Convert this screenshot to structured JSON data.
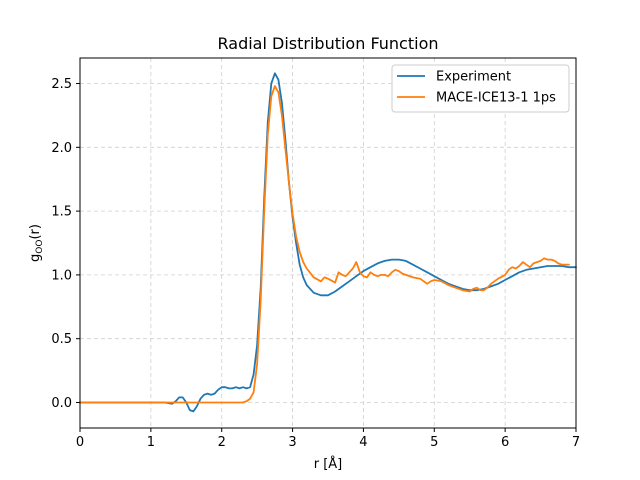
{
  "chart_data": {
    "type": "line",
    "title": "Radial Distribution Function",
    "xlabel": "r [Å]",
    "ylabel": "g_OO(r)",
    "xlim": [
      0,
      7
    ],
    "ylim": [
      -0.2,
      2.7
    ],
    "xticks": [
      0,
      1,
      2,
      3,
      4,
      5,
      6,
      7
    ],
    "yticks": [
      0.0,
      0.5,
      1.0,
      1.5,
      2.0,
      2.5
    ],
    "xtick_labels": [
      "0",
      "1",
      "2",
      "3",
      "4",
      "5",
      "6",
      "7"
    ],
    "ytick_labels": [
      "0.0",
      "0.5",
      "1.0",
      "1.5",
      "2.0",
      "2.5"
    ],
    "grid": true,
    "legend_position": "top-right",
    "series": [
      {
        "name": "Experiment",
        "color": "#1f77b4",
        "x": [
          0,
          1.0,
          1.2,
          1.3,
          1.35,
          1.4,
          1.45,
          1.5,
          1.55,
          1.6,
          1.65,
          1.7,
          1.75,
          1.8,
          1.85,
          1.9,
          1.95,
          2.0,
          2.05,
          2.1,
          2.15,
          2.2,
          2.25,
          2.3,
          2.35,
          2.4,
          2.45,
          2.5,
          2.55,
          2.6,
          2.65,
          2.7,
          2.75,
          2.8,
          2.85,
          2.9,
          2.95,
          3.0,
          3.05,
          3.1,
          3.15,
          3.2,
          3.3,
          3.4,
          3.5,
          3.6,
          3.7,
          3.8,
          3.9,
          4.0,
          4.1,
          4.2,
          4.3,
          4.4,
          4.5,
          4.6,
          4.7,
          4.8,
          4.9,
          5.0,
          5.1,
          5.2,
          5.3,
          5.4,
          5.5,
          5.6,
          5.7,
          5.8,
          5.9,
          6.0,
          6.1,
          6.2,
          6.3,
          6.4,
          6.5,
          6.6,
          6.7,
          6.8,
          6.9,
          7.0
        ],
        "y": [
          0,
          0,
          0,
          -0.01,
          0.01,
          0.04,
          0.04,
          0.0,
          -0.06,
          -0.07,
          -0.03,
          0.03,
          0.06,
          0.07,
          0.06,
          0.07,
          0.1,
          0.12,
          0.12,
          0.11,
          0.11,
          0.12,
          0.11,
          0.12,
          0.11,
          0.12,
          0.22,
          0.45,
          0.9,
          1.6,
          2.2,
          2.5,
          2.58,
          2.53,
          2.35,
          2.05,
          1.72,
          1.45,
          1.25,
          1.08,
          0.98,
          0.92,
          0.86,
          0.84,
          0.84,
          0.87,
          0.91,
          0.95,
          0.99,
          1.03,
          1.06,
          1.09,
          1.11,
          1.12,
          1.12,
          1.11,
          1.08,
          1.05,
          1.02,
          0.99,
          0.96,
          0.93,
          0.91,
          0.89,
          0.88,
          0.88,
          0.89,
          0.91,
          0.93,
          0.96,
          0.99,
          1.02,
          1.04,
          1.05,
          1.06,
          1.07,
          1.07,
          1.07,
          1.06,
          1.06
        ]
      },
      {
        "name": "MACE-ICE13-1 1ps",
        "color": "#ff7f0e",
        "x": [
          0,
          2.3,
          2.35,
          2.4,
          2.45,
          2.5,
          2.55,
          2.6,
          2.65,
          2.7,
          2.75,
          2.8,
          2.85,
          2.9,
          2.95,
          3.0,
          3.05,
          3.1,
          3.15,
          3.2,
          3.3,
          3.4,
          3.45,
          3.5,
          3.6,
          3.65,
          3.7,
          3.75,
          3.8,
          3.85,
          3.9,
          3.95,
          4.0,
          4.05,
          4.1,
          4.15,
          4.2,
          4.25,
          4.3,
          4.35,
          4.4,
          4.45,
          4.5,
          4.55,
          4.6,
          4.7,
          4.8,
          4.9,
          4.95,
          5.0,
          5.1,
          5.2,
          5.3,
          5.4,
          5.5,
          5.55,
          5.6,
          5.65,
          5.7,
          5.75,
          5.8,
          5.9,
          6.0,
          6.05,
          6.1,
          6.15,
          6.2,
          6.25,
          6.3,
          6.35,
          6.4,
          6.45,
          6.5,
          6.55,
          6.6,
          6.65,
          6.7,
          6.75,
          6.8,
          6.85,
          6.9
        ],
        "y": [
          0,
          0,
          0.01,
          0.03,
          0.08,
          0.3,
          0.8,
          1.5,
          2.1,
          2.4,
          2.48,
          2.43,
          2.25,
          1.98,
          1.72,
          1.48,
          1.3,
          1.18,
          1.1,
          1.05,
          0.98,
          0.95,
          0.98,
          0.97,
          0.94,
          1.02,
          1.0,
          0.99,
          1.02,
          1.05,
          1.1,
          1.02,
          0.99,
          0.98,
          1.02,
          1.0,
          0.99,
          1.0,
          1.0,
          0.99,
          1.02,
          1.04,
          1.03,
          1.01,
          1.0,
          0.98,
          0.97,
          0.93,
          0.95,
          0.96,
          0.95,
          0.92,
          0.9,
          0.88,
          0.87,
          0.89,
          0.9,
          0.88,
          0.88,
          0.9,
          0.93,
          0.97,
          1.0,
          1.04,
          1.06,
          1.05,
          1.07,
          1.1,
          1.08,
          1.06,
          1.09,
          1.1,
          1.11,
          1.13,
          1.12,
          1.12,
          1.11,
          1.09,
          1.08,
          1.08,
          1.08
        ]
      }
    ]
  }
}
